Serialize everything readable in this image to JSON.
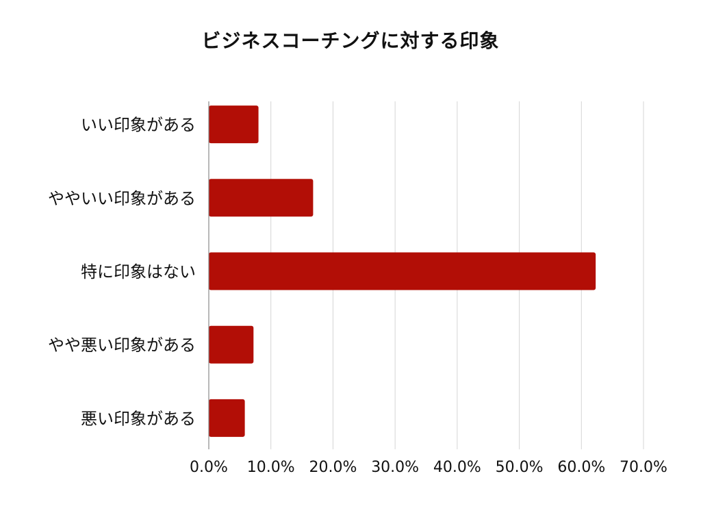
{
  "chart_data": {
    "type": "bar",
    "orientation": "horizontal",
    "title": "ビジネスコーチングに対する印象",
    "categories": [
      "いい印象がある",
      "ややいい印象がある",
      "特に印象はない",
      "やや悪い印象がある",
      "悪い印象がある"
    ],
    "values": [
      8.0,
      16.8,
      62.3,
      7.2,
      5.8
    ],
    "xlim": [
      0,
      70
    ],
    "xticks": [
      0,
      10,
      20,
      30,
      40,
      50,
      60,
      70
    ],
    "xtick_labels": [
      "0.0%",
      "10.0%",
      "20.0%",
      "30.0%",
      "40.0%",
      "50.0%",
      "60.0%",
      "70.0%"
    ],
    "xlabel": "",
    "ylabel": "",
    "grid": "vertical",
    "legend": "none",
    "bar_color": "#b20e06"
  }
}
